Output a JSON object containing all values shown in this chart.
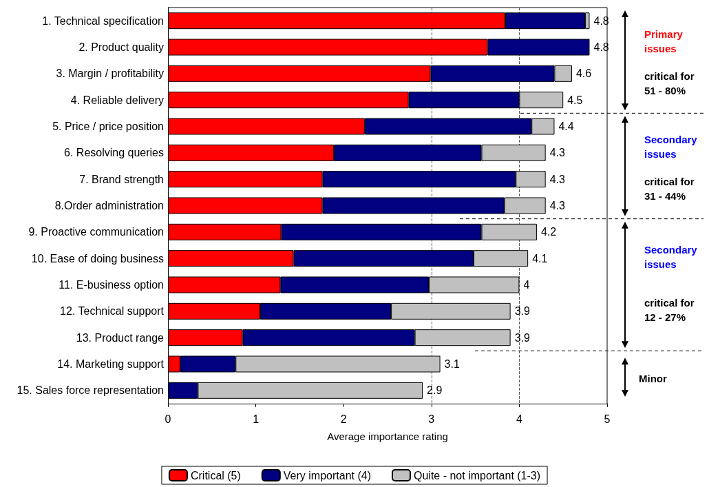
{
  "chart_data": {
    "type": "bar",
    "orientation": "horizontal",
    "stacked": true,
    "xlabel": "Average importance rating",
    "categories": [
      "1. Technical specification",
      "2. Product quality",
      "3. Margin / profitability",
      "4. Reliable delivery",
      "5. Price / price position",
      "6. Resolving queries",
      "7. Brand strength",
      "8.Order administration",
      "9. Proactive communication",
      "10. Ease of doing business",
      "11. E-business option",
      "12. Technical support",
      "13. Product range",
      "14. Marketing support",
      "15. Sales force representation"
    ],
    "series": [
      {
        "name": "Critical (5)",
        "color": "#ff0000",
        "values": [
          3.84,
          3.64,
          2.99,
          2.74,
          2.24,
          1.89,
          1.76,
          1.76,
          1.29,
          1.43,
          1.28,
          1.05,
          0.85,
          0.14,
          0
        ]
      },
      {
        "name": "Very important (4)",
        "color": "#000080",
        "values": [
          0.91,
          1.16,
          1.41,
          1.26,
          1.9,
          1.68,
          2.2,
          2.07,
          2.28,
          2.05,
          1.69,
          1.49,
          1.96,
          0.63,
          0.34
        ]
      },
      {
        "name": "Quite - not important (1-3)",
        "color": "#c0c0c0",
        "values": [
          0.05,
          0,
          0.2,
          0.5,
          0.26,
          0.73,
          0.34,
          0.47,
          0.63,
          0.62,
          1.03,
          1.36,
          1.09,
          2.33,
          2.56
        ]
      }
    ],
    "totals": [
      "4.8",
      "4.8",
      "4.6",
      "4.5",
      "4.4",
      "4.3",
      "4.3",
      "4.3",
      "4.2",
      "4.1",
      "4",
      "3.9",
      "3.9",
      "3.1",
      "2.9"
    ],
    "xlim": [
      0,
      5
    ],
    "xticks": [
      0,
      1,
      2,
      3,
      4,
      5
    ],
    "grid": false,
    "legend": "bottom",
    "ref_lines": [
      {
        "axis": "x",
        "value": 3,
        "line_style": "dashed",
        "color": "#555555"
      },
      {
        "axis": "x",
        "value": 4,
        "line_style": "dashed",
        "color": "#555555"
      }
    ],
    "annotations": [
      "Primary issues",
      "critical for 51 - 80%",
      "Secondary issues",
      "critical for 31 - 44%",
      "Secondary issues",
      "critical for 12 - 27%",
      "Minor"
    ]
  }
}
